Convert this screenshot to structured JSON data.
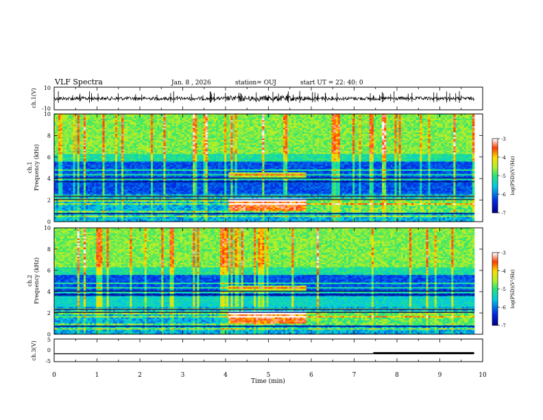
{
  "header": {
    "title": "VLF Spectra",
    "date": "Jan. 8 , 2026",
    "station": "station= OUJ",
    "start": "start UT =  22: 40: 0"
  },
  "chart_data": [
    {
      "type": "line",
      "ylabel": "ch.1(V)",
      "ylim": [
        -10,
        10
      ],
      "yticks": [
        "10",
        "-10"
      ],
      "xlim": [
        0,
        10
      ],
      "description_series": [
        {
          "values_range": [
            -1,
            1
          ]
        }
      ]
    },
    {
      "type": "heatmap",
      "ylabel_line1": "ch.1",
      "ylabel_line2": "Frequency (kHz)",
      "ylim": [
        0,
        10
      ],
      "yticks": [
        "0",
        "2",
        "4",
        "6",
        "8",
        "10"
      ],
      "xlim": [
        0,
        10
      ],
      "colorbar": {
        "label": "log(PSD)(V²/Hz)",
        "range": [
          -7,
          -3
        ],
        "ticks": [
          "-3",
          "-4",
          "-5",
          "-6",
          "-7"
        ]
      }
    },
    {
      "type": "heatmap",
      "ylabel_line1": "ch.2",
      "ylabel_line2": "Frequency (kHz)",
      "ylim": [
        0,
        10
      ],
      "yticks": [
        "0",
        "2",
        "4",
        "6",
        "8",
        "10"
      ],
      "xlim": [
        0,
        10
      ],
      "colorbar": {
        "label": "log(PSD)(V²/Hz)",
        "range": [
          -7,
          -3
        ],
        "ticks": [
          "-3",
          "-4",
          "-5",
          "-6",
          "-7"
        ]
      }
    },
    {
      "type": "line",
      "ylabel": "ch.3(V)",
      "ylim": [
        -5,
        5
      ],
      "yticks": [
        "5",
        "0",
        "-5"
      ],
      "xlim": [
        0,
        10
      ],
      "series": [
        {
          "x": [
            0,
            7.4,
            7.45,
            9.8
          ],
          "y": [
            -1.5,
            -1.5,
            -1.4,
            -1.4
          ]
        }
      ]
    }
  ],
  "xaxis": {
    "label": "Time (min)",
    "ticks": [
      "0",
      "1",
      "2",
      "3",
      "4",
      "5",
      "6",
      "7",
      "8",
      "9",
      "10"
    ]
  }
}
